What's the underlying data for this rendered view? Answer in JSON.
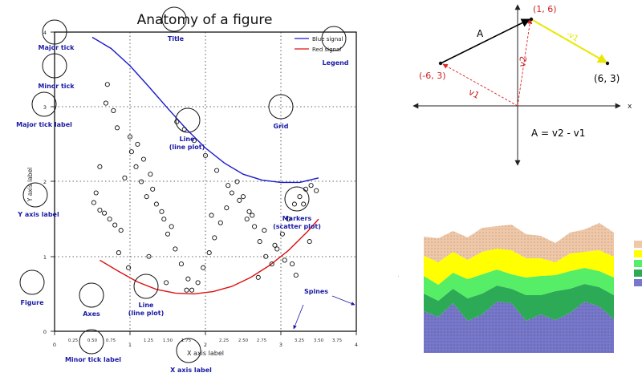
{
  "anatomy": {
    "title": "Anatomy of a figure",
    "xlabel": "X axis label",
    "ylabel": "Y axis label",
    "legend": [
      "Blue signal",
      "Red signal"
    ],
    "xticks_major": [
      "0",
      "1",
      "2",
      "3",
      "4"
    ],
    "xticks_minor": [
      "0.25",
      "0.50",
      "0.75",
      "1.25",
      "1.50",
      "1.75",
      "2.25",
      "2.50",
      "2.75",
      "3.25",
      "3.50",
      "3.75"
    ],
    "yticks_major": [
      "0",
      "1",
      "2",
      "3",
      "4"
    ],
    "annotations": {
      "title": "Title",
      "major_tick": "Major tick",
      "minor_tick": "Minor tick",
      "major_tick_label": "Major tick label",
      "grid": "Grid",
      "line1": "Line",
      "line1b": "(line plot)",
      "legend": "Legend",
      "y_axis_label": "Y axis label",
      "markers": "Markers",
      "markers_b": "(scatter plot)",
      "figure": "Figure",
      "axes": "Axes",
      "line2": "Line",
      "line2b": "(line plot)",
      "spines": "Spines",
      "minor_tick_label": "Minor tick label",
      "x_axis_label": "X axis label"
    }
  },
  "vectors": {
    "p1": "(1, 6)",
    "p2": "(-6, 3)",
    "p3": "(6, 3)",
    "A": "A",
    "v1": "v1",
    "v2": "v2",
    "neg_v1": "-v1",
    "x_axis": "x",
    "equation": "A = v2 - v1"
  },
  "chart_data": [
    {
      "type": "line",
      "title": "Anatomy of a figure",
      "xlabel": "X axis label",
      "ylabel": "Y axis label",
      "xlim": [
        0,
        4
      ],
      "ylim": [
        0,
        4
      ],
      "grid": true,
      "legend_position": "top-right",
      "series": [
        {
          "name": "Blue signal",
          "color": "#1a1acc",
          "x": [
            0.5,
            0.75,
            1.0,
            1.25,
            1.5,
            1.75,
            2.0,
            2.25,
            2.5,
            2.75,
            3.0,
            3.25,
            3.5
          ],
          "y": [
            3.93,
            3.78,
            3.55,
            3.27,
            2.98,
            2.7,
            2.45,
            2.25,
            2.1,
            2.02,
            1.99,
            1.99,
            2.05
          ]
        },
        {
          "name": "Red signal",
          "color": "#dd1111",
          "x": [
            0.6,
            0.85,
            1.1,
            1.35,
            1.6,
            1.85,
            2.1,
            2.35,
            2.6,
            2.85,
            3.1,
            3.35,
            3.5
          ],
          "y": [
            0.95,
            0.8,
            0.66,
            0.56,
            0.51,
            0.5,
            0.53,
            0.6,
            0.72,
            0.88,
            1.08,
            1.33,
            1.5
          ]
        },
        {
          "name": "",
          "type": "scatter",
          "x": [
            0.7,
            0.68,
            0.78,
            0.83,
            0.6,
            0.93,
            0.55,
            0.52,
            0.6,
            0.66,
            0.73,
            0.8,
            0.88,
            1.0,
            1.1,
            1.18,
            1.27,
            1.3,
            1.35,
            1.45,
            1.5,
            1.6,
            1.68,
            1.77,
            1.82,
            1.9,
            1.97,
            2.05,
            2.12,
            2.2,
            2.28,
            2.35,
            2.42,
            2.5,
            2.58,
            2.65,
            2.72,
            2.8,
            2.88,
            2.95,
            3.02,
            3.1,
            3.18,
            3.25,
            3.33,
            3.4,
            3.47,
            1.02,
            1.08,
            1.15,
            1.22,
            1.42,
            1.55,
            1.62,
            1.72,
            1.85,
            2.0,
            2.15,
            2.3,
            2.45,
            2.62,
            2.78,
            2.92,
            3.05,
            3.2,
            3.38,
            0.85,
            0.98,
            1.25,
            1.48,
            1.75,
            2.08,
            2.55,
            2.7,
            3.15,
            3.3
          ],
          "y": [
            3.3,
            3.05,
            2.95,
            2.72,
            2.2,
            2.05,
            1.85,
            1.72,
            1.62,
            1.58,
            1.5,
            1.42,
            1.35,
            2.6,
            2.5,
            2.3,
            2.1,
            1.9,
            1.7,
            1.5,
            1.3,
            1.1,
            0.9,
            0.7,
            0.55,
            0.65,
            0.85,
            1.05,
            1.25,
            1.45,
            1.65,
            1.85,
            2.0,
            1.8,
            1.6,
            1.4,
            1.2,
            1.0,
            0.9,
            1.1,
            1.3,
            1.5,
            1.7,
            1.8,
            1.9,
            1.95,
            1.88,
            2.4,
            2.2,
            2.0,
            1.8,
            1.6,
            1.4,
            2.8,
            2.7,
            2.55,
            2.35,
            2.15,
            1.95,
            1.75,
            1.55,
            1.35,
            1.15,
            0.95,
            0.75,
            1.2,
            1.05,
            0.85,
            1.0,
            0.65,
            0.55,
            1.55,
            1.5,
            0.72,
            0.9,
            1.7
          ]
        }
      ]
    },
    {
      "type": "area",
      "stacked": true,
      "series": [
        {
          "color": "#7777cc",
          "values": [
            52,
            45,
            62,
            40,
            48,
            64,
            62,
            40,
            48,
            41,
            50,
            64,
            58,
            42
          ]
        },
        {
          "color": "#2daa55",
          "values": [
            22,
            20,
            18,
            28,
            26,
            20,
            18,
            32,
            24,
            36,
            30,
            22,
            24,
            30
          ]
        },
        {
          "color": "#55ee66",
          "values": [
            22,
            20,
            20,
            24,
            24,
            20,
            18,
            22,
            24,
            20,
            22,
            20,
            20,
            22
          ]
        },
        {
          "color": "#ffff00",
          "values": [
            25,
            28,
            26,
            24,
            28,
            26,
            30,
            24,
            22,
            16,
            22,
            20,
            26,
            26
          ]
        },
        {
          "color": "#f0c8a8",
          "values": [
            24,
            30,
            26,
            28,
            30,
            28,
            32,
            30,
            28,
            24,
            26,
            28,
            34,
            30
          ]
        }
      ]
    }
  ]
}
